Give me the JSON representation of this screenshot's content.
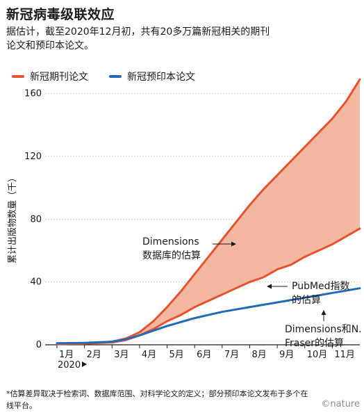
{
  "title": "新冠病毒级联效应",
  "subtitle": "据估计，截至2020年12月初，共有20多万篇新冠相关的期刊论文和预印本论文。",
  "footnote": "*估算差异取决于检索词、数据库范围、对科学论文的定义；部分预印本论文发布于多个在线平台。",
  "logo_text": "©nature",
  "chart_data": {
    "type": "area",
    "ylabel": "累计出版物数量（千）",
    "ylim": [
      0,
      170
    ],
    "yticks": [
      0,
      40,
      80,
      120,
      160
    ],
    "x_tick_labels": [
      "1月",
      "2月",
      "3月",
      "4月",
      "5月",
      "6月",
      "7月",
      "8月",
      "9月",
      "10月",
      "11月"
    ],
    "x_year_label": "2020",
    "xlim": [
      0,
      11
    ],
    "legend": [
      {
        "label": "新冠期刊论文",
        "color": "#e5522b"
      },
      {
        "label": "新冠预印本论文",
        "color": "#1f6bb5"
      }
    ],
    "fill_color": "#f4b7a1",
    "series": [
      {
        "name": "新冠期刊论文",
        "estimate": "Dimensions数据库的估算",
        "color": "#e5522b",
        "x": [
          0,
          1,
          2,
          2.5,
          3,
          3.5,
          4,
          4.5,
          5,
          5.5,
          6,
          6.5,
          7,
          7.5,
          8,
          8.5,
          9,
          9.5,
          10,
          10.5,
          11
        ],
        "y": [
          0.5,
          0.8,
          2,
          4,
          8,
          15,
          24,
          34,
          45,
          56,
          67,
          78,
          89,
          99,
          108,
          117,
          126,
          135,
          144,
          155,
          169
        ]
      },
      {
        "name": "新冠期刊论文",
        "estimate": "PubMed指数的估算",
        "color": "#e5522b",
        "x": [
          0,
          1,
          2,
          2.5,
          3,
          3.5,
          4,
          4.5,
          5,
          5.5,
          6,
          6.5,
          7,
          7.5,
          8,
          8.5,
          9,
          9.5,
          10,
          10.5,
          11
        ],
        "y": [
          0.5,
          0.8,
          1.5,
          3,
          6,
          10,
          15,
          19,
          24,
          28,
          32,
          36,
          40,
          43,
          48,
          51,
          56,
          60,
          64,
          69,
          74
        ]
      },
      {
        "name": "新冠预印本论文",
        "estimate": "Dimensions和N. Fraser的估算",
        "color": "#1f6bb5",
        "x": [
          0,
          1,
          2,
          2.5,
          3,
          3.5,
          4,
          4.5,
          5,
          5.5,
          6,
          6.5,
          7,
          7.5,
          8,
          8.5,
          9,
          9.5,
          10,
          10.5,
          11
        ],
        "y": [
          1,
          1.2,
          2,
          3.5,
          6,
          9,
          12,
          14.5,
          17,
          19,
          21,
          22.5,
          24,
          25.5,
          27,
          28.5,
          30,
          31.5,
          33,
          34.5,
          36
        ]
      }
    ],
    "annotations": [
      {
        "text_lines": [
          "Dimensions",
          "数据库的估算"
        ]
      },
      {
        "text_lines": [
          "PubMed指数",
          "的估算"
        ]
      },
      {
        "text_lines": [
          "Dimensions和N.",
          "Fraser的估算"
        ]
      }
    ]
  }
}
